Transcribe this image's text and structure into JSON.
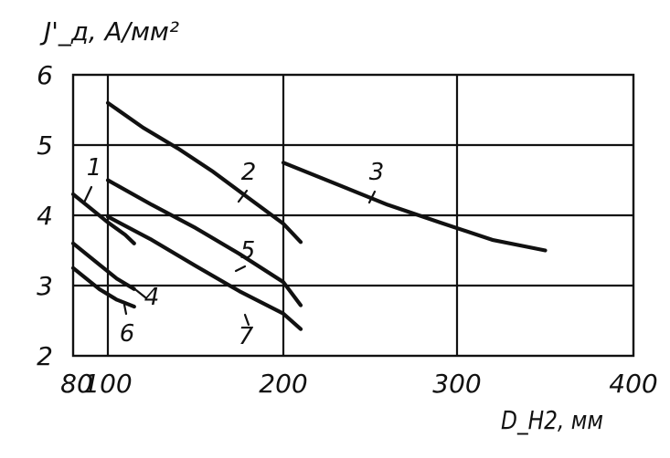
{
  "chart_data": {
    "type": "line",
    "title": "",
    "xlabel": "D_H2, мм",
    "ylabel": "J'_д, А/мм²",
    "x_ticks": [
      80,
      100,
      200,
      300,
      400
    ],
    "y_ticks": [
      2,
      3,
      4,
      5,
      6
    ],
    "xlim": [
      80,
      400
    ],
    "ylim": [
      2,
      6
    ],
    "grid": true,
    "series": [
      {
        "name": "1",
        "points": [
          [
            80,
            4.3
          ],
          [
            90,
            4.1
          ],
          [
            100,
            3.9
          ],
          [
            110,
            3.72
          ],
          [
            115,
            3.6
          ]
        ]
      },
      {
        "name": "2",
        "points": [
          [
            100,
            5.6
          ],
          [
            120,
            5.25
          ],
          [
            140,
            4.95
          ],
          [
            160,
            4.62
          ],
          [
            180,
            4.25
          ],
          [
            200,
            3.88
          ],
          [
            210,
            3.62
          ]
        ]
      },
      {
        "name": "3",
        "points": [
          [
            200,
            4.75
          ],
          [
            230,
            4.45
          ],
          [
            260,
            4.15
          ],
          [
            290,
            3.9
          ],
          [
            320,
            3.65
          ],
          [
            350,
            3.5
          ]
        ]
      },
      {
        "name": "4",
        "points": [
          [
            80,
            3.6
          ],
          [
            95,
            3.3
          ],
          [
            105,
            3.1
          ],
          [
            115,
            2.95
          ]
        ]
      },
      {
        "name": "5",
        "points": [
          [
            100,
            4.5
          ],
          [
            125,
            4.15
          ],
          [
            150,
            3.82
          ],
          [
            175,
            3.45
          ],
          [
            200,
            3.05
          ],
          [
            210,
            2.72
          ]
        ]
      },
      {
        "name": "6",
        "points": [
          [
            80,
            3.25
          ],
          [
            95,
            2.95
          ],
          [
            105,
            2.8
          ],
          [
            115,
            2.7
          ]
        ]
      },
      {
        "name": "7",
        "points": [
          [
            100,
            3.98
          ],
          [
            125,
            3.65
          ],
          [
            150,
            3.28
          ],
          [
            175,
            2.92
          ],
          [
            200,
            2.6
          ],
          [
            210,
            2.38
          ]
        ]
      }
    ]
  }
}
